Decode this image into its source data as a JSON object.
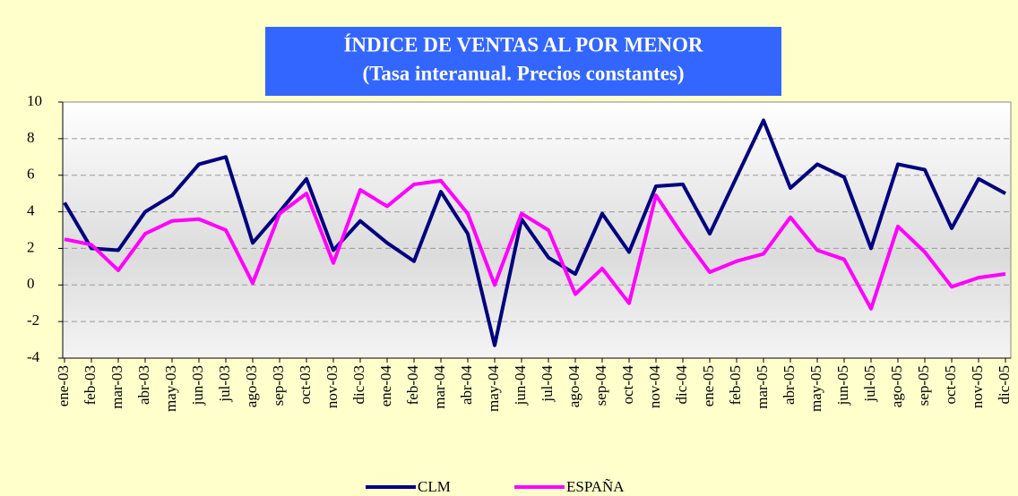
{
  "chart_data": {
    "type": "line",
    "title": "ÍNDICE DE VENTAS AL POR MENOR",
    "subtitle": "(Tasa interanual. Precios constantes)",
    "categories": [
      "ene-03",
      "feb-03",
      "mar-03",
      "abr-03",
      "may-03",
      "jun-03",
      "jul-03",
      "ago-03",
      "sep-03",
      "oct-03",
      "nov-03",
      "dic-03",
      "ene-04",
      "feb-04",
      "mar-04",
      "abr-04",
      "may-04",
      "jun-04",
      "jul-04",
      "ago-04",
      "sep-04",
      "oct-04",
      "nov-04",
      "dic-04",
      "ene-05",
      "feb-05",
      "mar-05",
      "abr-05",
      "may-05",
      "jun-05",
      "jul-05",
      "ago-05",
      "sep-05",
      "oct-05",
      "nov-05",
      "dic-05"
    ],
    "series": [
      {
        "name": "CLM",
        "color": "#000080",
        "values": [
          4.5,
          2.0,
          1.9,
          4.0,
          4.9,
          6.6,
          7.0,
          2.3,
          4.0,
          5.8,
          1.9,
          3.5,
          2.3,
          1.3,
          5.1,
          2.8,
          -3.3,
          3.6,
          1.5,
          0.6,
          3.9,
          1.8,
          5.4,
          5.5,
          2.8,
          5.9,
          9.0,
          5.3,
          6.6,
          5.9,
          2.0,
          6.6,
          6.3,
          3.1,
          5.8,
          5.0
        ]
      },
      {
        "name": "ESPAÑA",
        "color": "#ff00ff",
        "values": [
          2.5,
          2.2,
          0.8,
          2.8,
          3.5,
          3.6,
          3.0,
          0.1,
          3.9,
          5.0,
          1.2,
          5.2,
          4.3,
          5.5,
          5.7,
          3.9,
          0.0,
          3.9,
          3.0,
          -0.5,
          0.9,
          -1.0,
          4.9,
          2.7,
          0.7,
          1.3,
          1.7,
          3.7,
          1.9,
          1.4,
          -1.3,
          3.2,
          1.8,
          -0.1,
          0.4,
          0.6
        ]
      }
    ],
    "ylim": [
      -4,
      10
    ],
    "yticks": [
      -4,
      -2,
      0,
      2,
      4,
      6,
      8,
      10
    ],
    "grid": true
  }
}
